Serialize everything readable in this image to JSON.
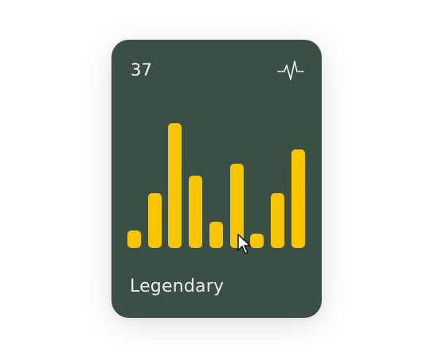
{
  "card": {
    "count": "37",
    "label": "Legendary",
    "bar_color": "#f8c600",
    "background_color": "#3c4f45",
    "icon": "pulse-icon"
  },
  "chart_data": {
    "type": "bar",
    "values": [
      3,
      9.5,
      21.5,
      12.5,
      4.5,
      14.5,
      2.5,
      9.5,
      17
    ]
  }
}
